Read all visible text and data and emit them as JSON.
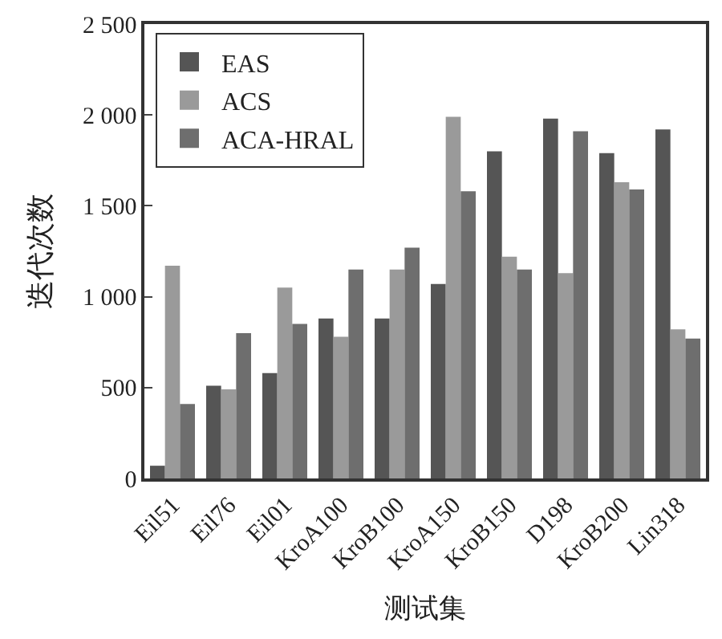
{
  "chart_data": {
    "type": "bar",
    "xlabel": "测试集",
    "ylabel": "迭代次数",
    "categories": [
      "Eil51",
      "Eil76",
      "Eil01",
      "KroA100",
      "KroB100",
      "KroA150",
      "KroB150",
      "D198",
      "KroB200",
      "Lin318"
    ],
    "series": [
      {
        "name": "EAS",
        "color": "#555555",
        "values": [
          70,
          510,
          580,
          880,
          880,
          1070,
          1800,
          1980,
          1790,
          1920
        ]
      },
      {
        "name": "ACS",
        "color": "#9a9a9a",
        "values": [
          1170,
          490,
          1050,
          780,
          1150,
          1990,
          1220,
          1130,
          1630,
          820
        ]
      },
      {
        "name": "ACA-HRAL",
        "color": "#6e6e6e",
        "values": [
          410,
          800,
          850,
          1150,
          1270,
          1580,
          1150,
          1910,
          1590,
          770
        ]
      }
    ],
    "ylim": [
      0,
      2500
    ],
    "yticks": [
      0,
      500,
      {
        "value": 1000,
        "label": "1 000"
      },
      {
        "value": 1500,
        "label": "1 500"
      },
      {
        "value": 2000,
        "label": "2 000"
      },
      {
        "value": 2500,
        "label": "2 500"
      }
    ],
    "legend": "top left"
  }
}
